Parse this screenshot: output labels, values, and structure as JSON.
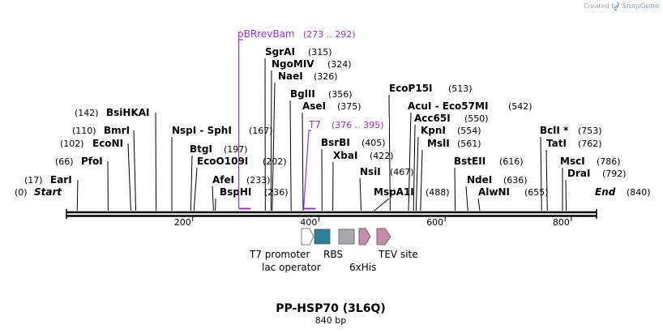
{
  "watermark": {
    "prefix": "Created by",
    "brand": "SnapGene"
  },
  "sequence": {
    "name": "PP-HSP70 (3L6Q)",
    "length_label": "840 bp",
    "length": 840
  },
  "axis": {
    "ticks": [
      200,
      400,
      600,
      800
    ]
  },
  "termini": [
    {
      "name": "Start",
      "position": 0,
      "pos_label": "(0)"
    },
    {
      "name": "End",
      "position": 840,
      "pos_label": "(840)"
    }
  ],
  "enzymes": [
    {
      "name": "EarI",
      "pos": 17,
      "label": "(17)"
    },
    {
      "name": "PfoI",
      "pos": 66,
      "label": "(66)"
    },
    {
      "name": "EcoNI",
      "pos": 102,
      "label": "(102)"
    },
    {
      "name": "BmrI",
      "pos": 110,
      "label": "(110)"
    },
    {
      "name": "BsiHKAI",
      "pos": 142,
      "label": "(142)"
    },
    {
      "name": "NspI - SphI",
      "pos": 167,
      "label": "(167)"
    },
    {
      "name": "BtgI",
      "pos": 197,
      "label": "(197)"
    },
    {
      "name": "EcoO109I",
      "pos": 202,
      "label": "(202)"
    },
    {
      "name": "AfeI",
      "pos": 233,
      "label": "(233)"
    },
    {
      "name": "BspHI",
      "pos": 236,
      "label": "(236)"
    },
    {
      "name": "SgrAI",
      "pos": 315,
      "label": "(315)"
    },
    {
      "name": "NgoMIV",
      "pos": 324,
      "label": "(324)"
    },
    {
      "name": "NaeI",
      "pos": 326,
      "label": "(326)"
    },
    {
      "name": "BglII",
      "pos": 356,
      "label": "(356)"
    },
    {
      "name": "AseI",
      "pos": 375,
      "label": "(375)"
    },
    {
      "name": "BsrBI",
      "pos": 405,
      "label": "(405)"
    },
    {
      "name": "XbaI",
      "pos": 422,
      "label": "(422)"
    },
    {
      "name": "NsiI",
      "pos": 467,
      "label": "(467)"
    },
    {
      "name": "MspA1I",
      "pos": 488,
      "label": "(488)"
    },
    {
      "name": "EcoP15I",
      "pos": 513,
      "label": "(513)"
    },
    {
      "name": "AcuI - Eco57MI",
      "pos": 542,
      "label": "(542)"
    },
    {
      "name": "Acc65I",
      "pos": 550,
      "label": "(550)"
    },
    {
      "name": "KpnI",
      "pos": 554,
      "label": "(554)"
    },
    {
      "name": "MslI",
      "pos": 561,
      "label": "(561)"
    },
    {
      "name": "BstEII",
      "pos": 616,
      "label": "(616)"
    },
    {
      "name": "NdeI",
      "pos": 636,
      "label": "(636)"
    },
    {
      "name": "AlwNI",
      "pos": 655,
      "label": "(655)"
    },
    {
      "name": "BclI *",
      "pos": 753,
      "label": "(753)"
    },
    {
      "name": "TatI",
      "pos": 762,
      "label": "(762)"
    },
    {
      "name": "MscI",
      "pos": 786,
      "label": "(786)"
    },
    {
      "name": "DraI",
      "pos": 792,
      "label": "(792)"
    }
  ],
  "primers": [
    {
      "name": "pBRrevBam",
      "range_label": "(273 .. 292)",
      "start": 273,
      "end": 292
    },
    {
      "name": "T7",
      "range_label": "(376 .. 395)",
      "start": 376,
      "end": 395
    }
  ],
  "features": [
    {
      "name": "T7 promoter",
      "type": "promoter",
      "color": "#ffffff"
    },
    {
      "name": "lac operator",
      "type": "operator",
      "color": "#2e7f99"
    },
    {
      "name": "RBS",
      "type": "rbs",
      "color": "#a7a9ac"
    },
    {
      "name": "6xHis",
      "type": "tag",
      "color": "#c58dab"
    },
    {
      "name": "TEV site",
      "type": "site",
      "color": "#c58dab"
    }
  ],
  "colors": {
    "primer": "#9b30d9",
    "backbone": "#000000"
  }
}
